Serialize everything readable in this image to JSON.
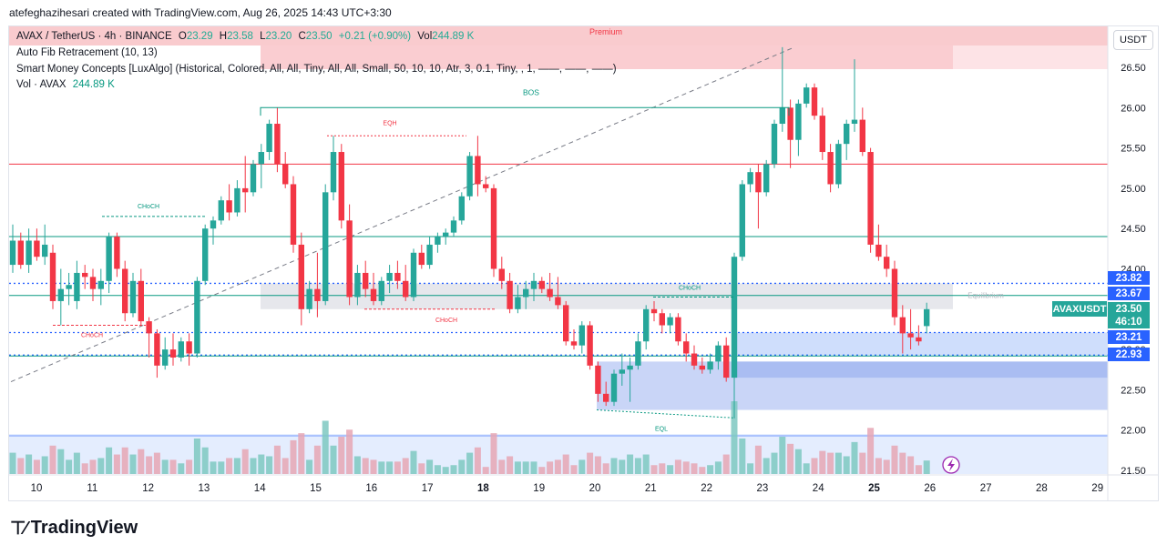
{
  "header": {
    "credit": "atefeghazihesari created with TradingView.com, Aug 26, 2025 14:43 UTC+3:30"
  },
  "legend": {
    "symbol": "AVAX / TetherUS · 4h · BINANCE",
    "o_label": "O",
    "o": "23.29",
    "h_label": "H",
    "h": "23.58",
    "l_label": "L",
    "l": "23.20",
    "c_label": "C",
    "c": "23.50",
    "change": "+0.21 (+0.90%)",
    "vol_label": "Vol",
    "vol": "244.89 K",
    "fib": "Auto Fib Retracement (10, 13)",
    "smc": "Smart Money Concepts [LuxAlgo] (Historical, Colored, All, All, Tiny, All, All, Small, 50, 10, 10, Atr, 3, 0.1, Tiny, , 1, ——, ——, ——)",
    "vol_line_label": "Vol · AVAX",
    "vol_line_value": "244.89 K"
  },
  "currency_button": "USDT",
  "symbol_tag": "AVAXUSDT",
  "price_tags": [
    {
      "text": "23.82",
      "color": "#2962ff"
    },
    {
      "text": "23.67",
      "color": "#2962ff"
    },
    {
      "text": "23.50",
      "color": "#26a69a"
    },
    {
      "text": "46:10",
      "color": "#26a69a"
    },
    {
      "text": "23.21",
      "color": "#2962ff"
    },
    {
      "text": "22.93",
      "color": "#2962ff"
    }
  ],
  "annotations": {
    "premium": "Premium",
    "bos": "BOS",
    "eqh": "EQH",
    "eql": "EQL",
    "equilibrium": "Equilibrium",
    "choch": "CHoCH"
  },
  "footer": {
    "brand": "TradingView"
  },
  "colors": {
    "up": "#26a69a",
    "down": "#f23645",
    "accent": "#2962ff"
  },
  "chart_data": {
    "type": "candlestick",
    "title": "AVAX / TetherUS · 4h · BINANCE",
    "x_ticks": [
      "10",
      "11",
      "12",
      "13",
      "14",
      "15",
      "16",
      "17",
      "18",
      "19",
      "20",
      "21",
      "22",
      "23",
      "24",
      "25",
      "26",
      "27",
      "28",
      "29"
    ],
    "y_ticks": [
      "26.50",
      "26.00",
      "25.50",
      "25.00",
      "24.50",
      "24.00",
      "23.50",
      "23.00",
      "22.50",
      "22.00",
      "21.50"
    ],
    "ylim": [
      21.4,
      26.9
    ],
    "candles": [
      {
        "o": 24.05,
        "h": 24.55,
        "l": 23.95,
        "c": 24.35
      },
      {
        "o": 24.35,
        "h": 24.45,
        "l": 24.0,
        "c": 24.05
      },
      {
        "o": 24.05,
        "h": 24.5,
        "l": 23.95,
        "c": 24.35
      },
      {
        "o": 24.35,
        "h": 24.5,
        "l": 24.1,
        "c": 24.15
      },
      {
        "o": 24.15,
        "h": 24.55,
        "l": 24.05,
        "c": 24.3
      },
      {
        "o": 24.2,
        "h": 24.3,
        "l": 23.5,
        "c": 23.6
      },
      {
        "o": 23.6,
        "h": 24.0,
        "l": 23.3,
        "c": 23.75
      },
      {
        "o": 23.75,
        "h": 23.95,
        "l": 23.55,
        "c": 23.8
      },
      {
        "o": 23.6,
        "h": 24.1,
        "l": 23.5,
        "c": 23.95
      },
      {
        "o": 23.95,
        "h": 24.05,
        "l": 23.75,
        "c": 23.9
      },
      {
        "o": 23.9,
        "h": 24.0,
        "l": 23.6,
        "c": 23.75
      },
      {
        "o": 23.75,
        "h": 24.0,
        "l": 23.55,
        "c": 23.85
      },
      {
        "o": 23.85,
        "h": 24.45,
        "l": 23.7,
        "c": 24.4
      },
      {
        "o": 24.4,
        "h": 24.45,
        "l": 23.9,
        "c": 24.0
      },
      {
        "o": 24.0,
        "h": 24.1,
        "l": 23.35,
        "c": 23.45
      },
      {
        "o": 23.45,
        "h": 23.95,
        "l": 23.4,
        "c": 23.85
      },
      {
        "o": 23.85,
        "h": 24.0,
        "l": 23.3,
        "c": 23.35
      },
      {
        "o": 23.35,
        "h": 23.4,
        "l": 22.9,
        "c": 23.2
      },
      {
        "o": 23.2,
        "h": 23.25,
        "l": 22.65,
        "c": 22.8
      },
      {
        "o": 22.8,
        "h": 23.15,
        "l": 22.75,
        "c": 23.0
      },
      {
        "o": 23.0,
        "h": 23.2,
        "l": 22.8,
        "c": 22.9
      },
      {
        "o": 22.9,
        "h": 23.15,
        "l": 22.85,
        "c": 23.1
      },
      {
        "o": 23.1,
        "h": 23.2,
        "l": 22.8,
        "c": 22.95
      },
      {
        "o": 22.95,
        "h": 23.9,
        "l": 22.9,
        "c": 23.85
      },
      {
        "o": 23.85,
        "h": 24.55,
        "l": 23.8,
        "c": 24.5
      },
      {
        "o": 24.5,
        "h": 24.65,
        "l": 24.3,
        "c": 24.6
      },
      {
        "o": 24.6,
        "h": 24.9,
        "l": 24.55,
        "c": 24.85
      },
      {
        "o": 24.85,
        "h": 25.05,
        "l": 24.6,
        "c": 24.7
      },
      {
        "o": 24.7,
        "h": 25.1,
        "l": 24.65,
        "c": 25.0
      },
      {
        "o": 25.0,
        "h": 25.4,
        "l": 24.7,
        "c": 24.95
      },
      {
        "o": 24.95,
        "h": 25.35,
        "l": 24.9,
        "c": 25.3
      },
      {
        "o": 25.3,
        "h": 25.55,
        "l": 25.0,
        "c": 25.45
      },
      {
        "o": 25.45,
        "h": 25.85,
        "l": 25.35,
        "c": 25.8
      },
      {
        "o": 25.8,
        "h": 26.0,
        "l": 25.2,
        "c": 25.3
      },
      {
        "o": 25.3,
        "h": 25.45,
        "l": 25.0,
        "c": 25.05
      },
      {
        "o": 25.05,
        "h": 25.15,
        "l": 24.2,
        "c": 24.3
      },
      {
        "o": 24.3,
        "h": 24.45,
        "l": 23.3,
        "c": 23.5
      },
      {
        "o": 23.5,
        "h": 23.85,
        "l": 23.45,
        "c": 23.75
      },
      {
        "o": 23.75,
        "h": 24.2,
        "l": 23.4,
        "c": 23.6
      },
      {
        "o": 23.6,
        "h": 25.05,
        "l": 23.55,
        "c": 24.95
      },
      {
        "o": 24.95,
        "h": 25.65,
        "l": 24.85,
        "c": 25.45
      },
      {
        "o": 25.45,
        "h": 25.55,
        "l": 24.5,
        "c": 24.6
      },
      {
        "o": 24.6,
        "h": 24.8,
        "l": 23.55,
        "c": 23.65
      },
      {
        "o": 23.65,
        "h": 24.05,
        "l": 23.55,
        "c": 23.95
      },
      {
        "o": 23.95,
        "h": 24.1,
        "l": 23.65,
        "c": 23.75
      },
      {
        "o": 23.75,
        "h": 23.95,
        "l": 23.55,
        "c": 23.6
      },
      {
        "o": 23.6,
        "h": 23.9,
        "l": 23.55,
        "c": 23.85
      },
      {
        "o": 23.85,
        "h": 24.05,
        "l": 23.7,
        "c": 23.95
      },
      {
        "o": 23.95,
        "h": 24.1,
        "l": 23.75,
        "c": 23.85
      },
      {
        "o": 23.85,
        "h": 24.05,
        "l": 23.6,
        "c": 23.65
      },
      {
        "o": 23.65,
        "h": 24.25,
        "l": 23.6,
        "c": 24.2
      },
      {
        "o": 24.2,
        "h": 24.3,
        "l": 24.0,
        "c": 24.05
      },
      {
        "o": 24.05,
        "h": 24.4,
        "l": 24.0,
        "c": 24.3
      },
      {
        "o": 24.3,
        "h": 24.45,
        "l": 24.2,
        "c": 24.4
      },
      {
        "o": 24.4,
        "h": 24.5,
        "l": 24.3,
        "c": 24.45
      },
      {
        "o": 24.45,
        "h": 24.65,
        "l": 24.4,
        "c": 24.6
      },
      {
        "o": 24.6,
        "h": 24.95,
        "l": 24.55,
        "c": 24.9
      },
      {
        "o": 24.9,
        "h": 25.45,
        "l": 24.85,
        "c": 25.4
      },
      {
        "o": 25.4,
        "h": 25.65,
        "l": 24.9,
        "c": 25.05
      },
      {
        "o": 25.05,
        "h": 25.15,
        "l": 24.95,
        "c": 25.0
      },
      {
        "o": 25.0,
        "h": 25.05,
        "l": 23.9,
        "c": 24.0
      },
      {
        "o": 24.0,
        "h": 24.15,
        "l": 23.75,
        "c": 23.85
      },
      {
        "o": 23.85,
        "h": 23.95,
        "l": 23.45,
        "c": 23.5
      },
      {
        "o": 23.5,
        "h": 23.8,
        "l": 23.45,
        "c": 23.65
      },
      {
        "o": 23.65,
        "h": 23.85,
        "l": 23.5,
        "c": 23.75
      },
      {
        "o": 23.75,
        "h": 23.95,
        "l": 23.6,
        "c": 23.85
      },
      {
        "o": 23.85,
        "h": 23.9,
        "l": 23.7,
        "c": 23.75
      },
      {
        "o": 23.75,
        "h": 23.95,
        "l": 23.6,
        "c": 23.65
      },
      {
        "o": 23.65,
        "h": 23.9,
        "l": 23.5,
        "c": 23.55
      },
      {
        "o": 23.55,
        "h": 23.6,
        "l": 23.05,
        "c": 23.1
      },
      {
        "o": 23.1,
        "h": 23.25,
        "l": 23.0,
        "c": 23.05
      },
      {
        "o": 23.05,
        "h": 23.35,
        "l": 22.95,
        "c": 23.3
      },
      {
        "o": 23.3,
        "h": 23.35,
        "l": 22.75,
        "c": 22.8
      },
      {
        "o": 22.8,
        "h": 22.85,
        "l": 22.35,
        "c": 22.45
      },
      {
        "o": 22.45,
        "h": 22.6,
        "l": 22.3,
        "c": 22.35
      },
      {
        "o": 22.35,
        "h": 22.75,
        "l": 22.3,
        "c": 22.7
      },
      {
        "o": 22.7,
        "h": 22.95,
        "l": 22.55,
        "c": 22.75
      },
      {
        "o": 22.75,
        "h": 22.9,
        "l": 22.35,
        "c": 22.8
      },
      {
        "o": 22.8,
        "h": 23.2,
        "l": 22.75,
        "c": 23.1
      },
      {
        "o": 23.1,
        "h": 23.55,
        "l": 23.0,
        "c": 23.5
      },
      {
        "o": 23.5,
        "h": 23.6,
        "l": 23.35,
        "c": 23.45
      },
      {
        "o": 23.45,
        "h": 23.5,
        "l": 23.2,
        "c": 23.3
      },
      {
        "o": 23.3,
        "h": 23.45,
        "l": 23.2,
        "c": 23.4
      },
      {
        "o": 23.4,
        "h": 23.45,
        "l": 23.05,
        "c": 23.1
      },
      {
        "o": 23.1,
        "h": 23.2,
        "l": 22.85,
        "c": 22.95
      },
      {
        "o": 22.95,
        "h": 23.05,
        "l": 22.75,
        "c": 22.8
      },
      {
        "o": 22.8,
        "h": 22.9,
        "l": 22.7,
        "c": 22.75
      },
      {
        "o": 22.75,
        "h": 22.95,
        "l": 22.7,
        "c": 22.85
      },
      {
        "o": 22.85,
        "h": 23.1,
        "l": 22.75,
        "c": 23.05
      },
      {
        "o": 23.05,
        "h": 23.15,
        "l": 22.6,
        "c": 22.65
      },
      {
        "o": 22.65,
        "h": 24.2,
        "l": 22.15,
        "c": 24.15
      },
      {
        "o": 24.15,
        "h": 25.1,
        "l": 24.1,
        "c": 25.05
      },
      {
        "o": 25.05,
        "h": 25.25,
        "l": 24.95,
        "c": 25.2
      },
      {
        "o": 25.2,
        "h": 25.3,
        "l": 24.5,
        "c": 24.95
      },
      {
        "o": 24.95,
        "h": 25.35,
        "l": 24.9,
        "c": 25.3
      },
      {
        "o": 25.3,
        "h": 25.85,
        "l": 25.25,
        "c": 25.8
      },
      {
        "o": 25.8,
        "h": 26.75,
        "l": 25.7,
        "c": 26.0
      },
      {
        "o": 26.0,
        "h": 26.1,
        "l": 25.25,
        "c": 25.6
      },
      {
        "o": 25.6,
        "h": 26.1,
        "l": 25.4,
        "c": 26.05
      },
      {
        "o": 26.05,
        "h": 26.3,
        "l": 26.0,
        "c": 26.25
      },
      {
        "o": 26.25,
        "h": 26.3,
        "l": 25.85,
        "c": 25.9
      },
      {
        "o": 25.9,
        "h": 26.0,
        "l": 25.35,
        "c": 25.45
      },
      {
        "o": 25.45,
        "h": 25.55,
        "l": 24.95,
        "c": 25.05
      },
      {
        "o": 25.05,
        "h": 25.6,
        "l": 25.0,
        "c": 25.55
      },
      {
        "o": 25.55,
        "h": 25.85,
        "l": 25.35,
        "c": 25.8
      },
      {
        "o": 25.8,
        "h": 26.6,
        "l": 25.7,
        "c": 25.85
      },
      {
        "o": 25.85,
        "h": 26.0,
        "l": 25.4,
        "c": 25.45
      },
      {
        "o": 25.45,
        "h": 25.5,
        "l": 24.2,
        "c": 24.3
      },
      {
        "o": 24.3,
        "h": 24.55,
        "l": 24.1,
        "c": 24.15
      },
      {
        "o": 24.15,
        "h": 24.3,
        "l": 23.9,
        "c": 24.0
      },
      {
        "o": 24.0,
        "h": 24.1,
        "l": 23.3,
        "c": 23.4
      },
      {
        "o": 23.4,
        "h": 23.55,
        "l": 22.95,
        "c": 23.2
      },
      {
        "o": 23.2,
        "h": 23.5,
        "l": 23.0,
        "c": 23.15
      },
      {
        "o": 23.15,
        "h": 23.3,
        "l": 23.05,
        "c": 23.1
      },
      {
        "o": 23.29,
        "h": 23.58,
        "l": 23.2,
        "c": 23.5
      }
    ],
    "volume_note": "Vol · AVAX 244.89 K",
    "levels": [
      {
        "price": 25.3,
        "color": "#f23645",
        "label": ""
      },
      {
        "price": 24.4,
        "color": "#089981",
        "label": ""
      },
      {
        "price": 23.67,
        "color": "#089981",
        "label": "23.67"
      },
      {
        "price": 23.82,
        "color": "#2962ff",
        "label": "23.82"
      },
      {
        "price": 23.21,
        "color": "#2962ff",
        "label": "23.21"
      },
      {
        "price": 22.93,
        "color": "#2962ff",
        "label": "22.93"
      }
    ],
    "last_price": 23.5
  }
}
